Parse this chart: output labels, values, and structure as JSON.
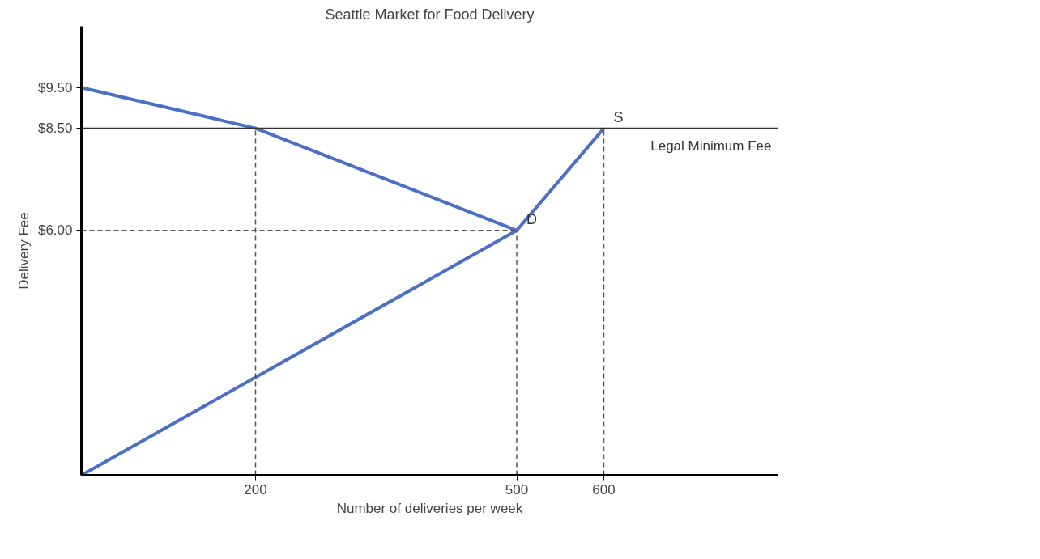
{
  "chart_data": {
    "type": "line",
    "title": "Seattle Market for Food Delivery",
    "xlabel": "Number of deliveries per week",
    "ylabel": "Delivery Fee",
    "xlim": [
      0,
      800
    ],
    "ylim": [
      0,
      11
    ],
    "xticks": [
      200,
      500,
      600
    ],
    "yticks": [
      {
        "value": 6,
        "label": "$6.00"
      },
      {
        "value": 8.5,
        "label": "$8.50"
      },
      {
        "value": 9.5,
        "label": "$9.50"
      }
    ],
    "series": [
      {
        "name": "S",
        "color": "#4a6fc4",
        "x": [
          0,
          500,
          600
        ],
        "values": [
          0,
          6,
          8.5
        ]
      },
      {
        "name": "D",
        "color": "#4a6fc4",
        "x": [
          0,
          200,
          500
        ],
        "values": [
          9.5,
          8.5,
          6
        ]
      },
      {
        "color": "#555555",
        "x": [
          200,
          200
        ],
        "values": [
          0,
          8.5
        ],
        "line_style": "dashed"
      },
      {
        "color": "#555555",
        "x": [
          500,
          500
        ],
        "values": [
          0,
          6
        ],
        "line_style": "dashed"
      },
      {
        "color": "#555555",
        "x": [
          600,
          600
        ],
        "values": [
          0,
          8.5
        ],
        "line_style": "dashed"
      },
      {
        "color": "#555555",
        "x": [
          0,
          500
        ],
        "values": [
          6,
          6
        ],
        "line_style": "dashed"
      }
    ],
    "ref_lines": [
      {
        "axis": "y",
        "value": 8.5,
        "label": "Legal Minimum Fee",
        "color": "#333333"
      }
    ],
    "grid": false
  }
}
